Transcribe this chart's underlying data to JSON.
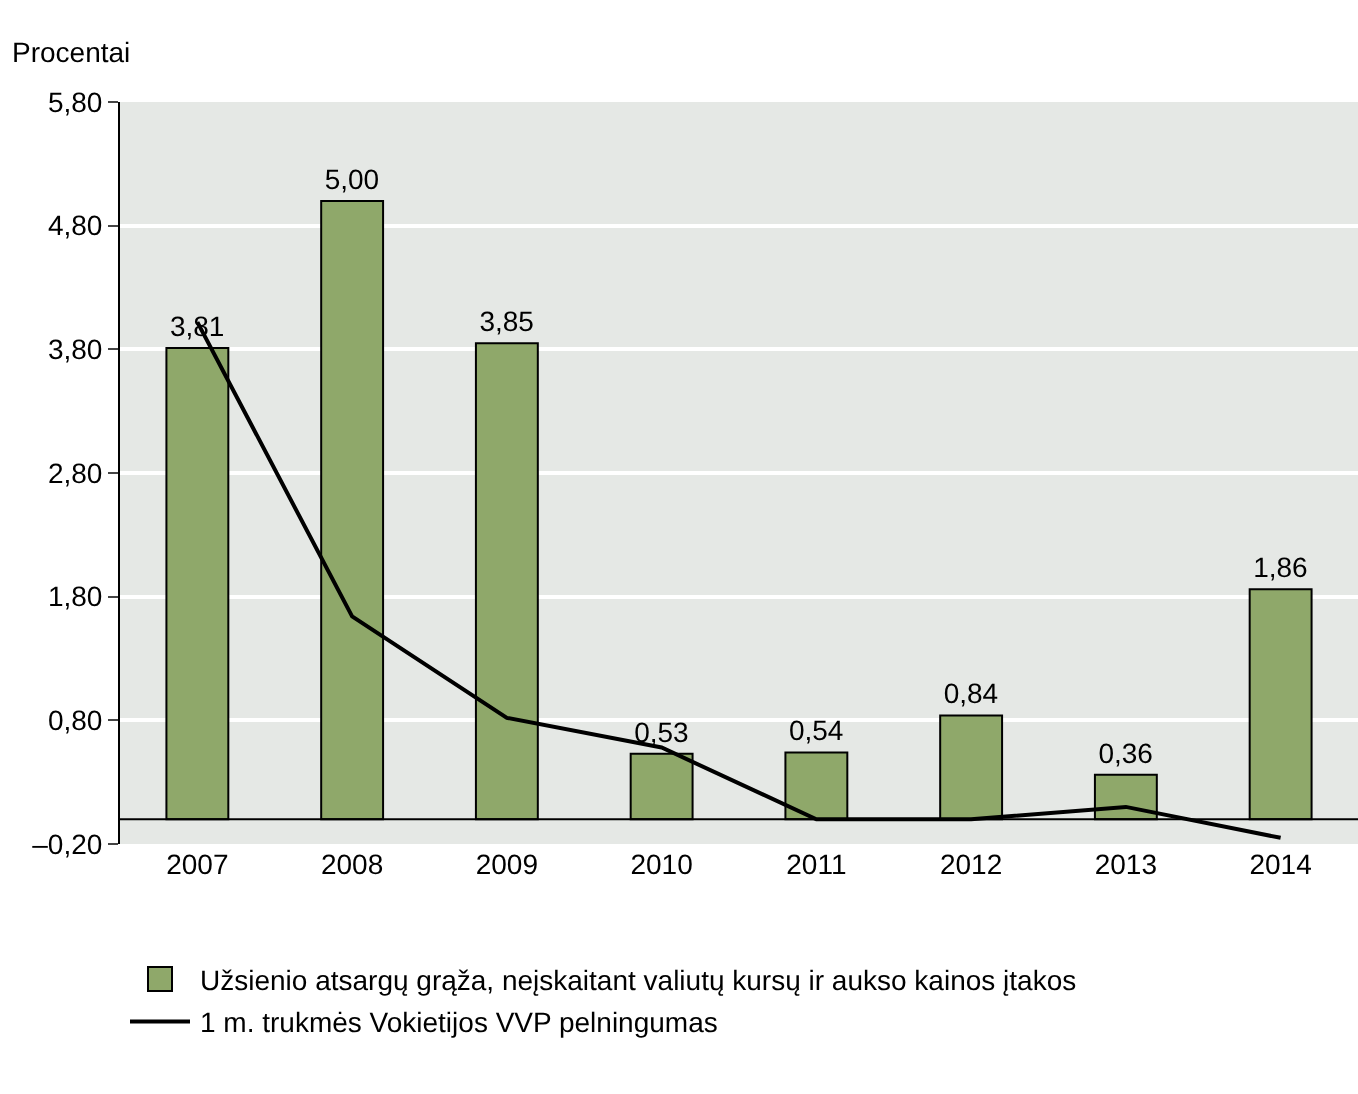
{
  "chart_data": {
    "type": "bar",
    "ylabel": "Procentai",
    "categories": [
      "2007",
      "2008",
      "2009",
      "2010",
      "2011",
      "2012",
      "2013",
      "2014"
    ],
    "series": [
      {
        "name": "Užsienio atsargų grąža, neįskaitant valiutų kursų ir aukso kainos įtakos",
        "color": "#8fa86a",
        "values": [
          3.81,
          5.0,
          3.85,
          0.53,
          0.54,
          0.84,
          0.36,
          1.86
        ],
        "value_labels": [
          "3,81",
          "5,00",
          "3,85",
          "0,53",
          "0,54",
          "0,84",
          "0,36",
          "1,86"
        ]
      },
      {
        "name": "1 m. trukmės Vokietijos VVP pelningumas",
        "type": "line",
        "color": "#000000",
        "values": [
          4.02,
          1.64,
          0.82,
          0.58,
          0.0,
          0.0,
          0.1,
          -0.15
        ]
      }
    ],
    "ylim": [
      -0.2,
      5.8
    ],
    "yticks": [
      {
        "value": -0.2,
        "label": "–0,20"
      },
      {
        "value": 0.8,
        "label": "0,80"
      },
      {
        "value": 1.8,
        "label": "1,80"
      },
      {
        "value": 2.8,
        "label": "2,80"
      },
      {
        "value": 3.8,
        "label": "3,80"
      },
      {
        "value": 4.8,
        "label": "4,80"
      },
      {
        "value": 5.8,
        "label": "5,80"
      }
    ],
    "grid": "y",
    "legend": "bottom",
    "marker": "none",
    "line_style": "solid"
  }
}
